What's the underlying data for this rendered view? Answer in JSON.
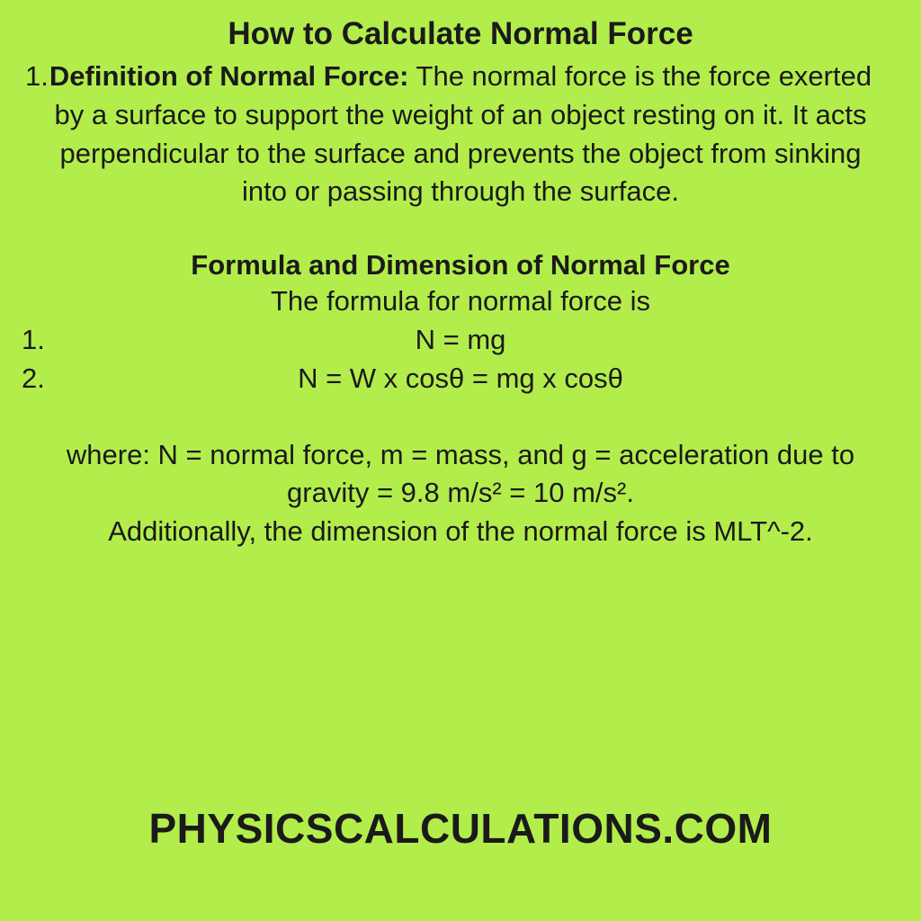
{
  "title": "How to Calculate Normal Force",
  "definition": {
    "marker": "1.",
    "label": "Definition of Normal Force:",
    "text": " The normal force is the force exerted by a surface to support the weight of an object resting on it. It acts perpendicular to the surface and prevents the object from sinking into or passing through the surface."
  },
  "subheading": "Formula and Dimension of Normal Force",
  "formula_intro": "The formula for normal force is",
  "formulas": [
    {
      "marker": "1.",
      "text": "N = mg"
    },
    {
      "marker": "2.",
      "text": "N = W x cosθ = mg x cosθ"
    }
  ],
  "where_text": "where: N = normal force, m = mass, and g = acceleration due to gravity = 9.8 m/s² = 10 m/s².",
  "dimension_text": "Additionally, the dimension of the normal force is MLT^-2.",
  "footer": "PHYSICSCALCULATIONS.COM",
  "colors": {
    "background": "#b3ed4c",
    "text": "#1a1a1a"
  },
  "typography": {
    "title_fontsize": 35,
    "body_fontsize": 31,
    "footer_fontsize": 46,
    "title_weight": 700,
    "footer_weight": 800
  }
}
